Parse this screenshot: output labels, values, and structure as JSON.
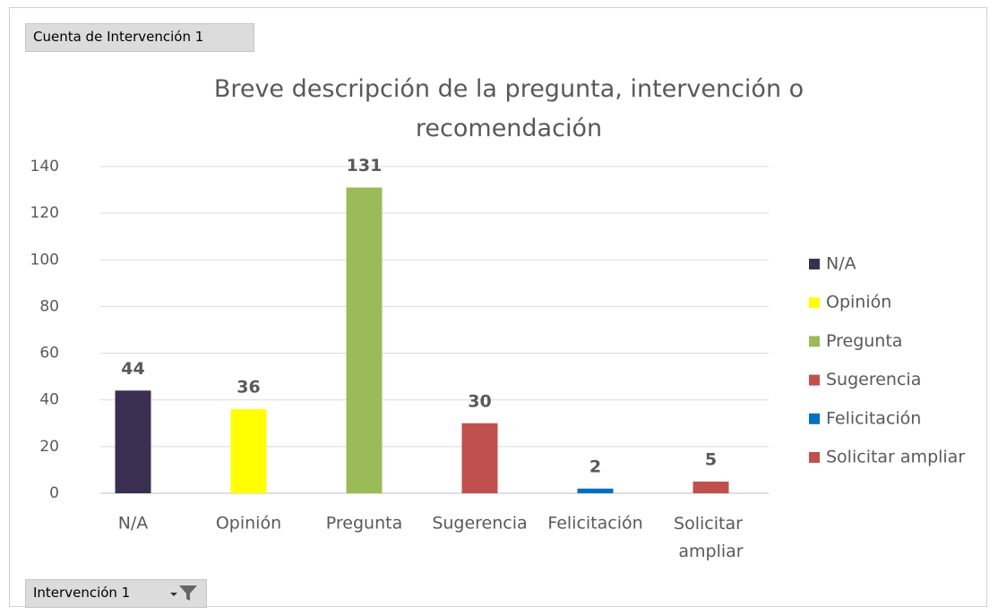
{
  "pivot_value_button": "Cuenta de Intervención 1",
  "pivot_axis_button": "Intervención 1",
  "chart_data": {
    "type": "bar",
    "title": "Breve descripción de la pregunta, intervención o recomendación",
    "categories": [
      "N/A",
      "Opinión",
      "Pregunta",
      "Sugerencia",
      "Felicitación",
      "Solicitar ampliar"
    ],
    "values": [
      44,
      36,
      131,
      30,
      2,
      5
    ],
    "colors": [
      "#3a2f50",
      "#ffff00",
      "#9bbb59",
      "#c0504d",
      "#0070c0",
      "#c0504d"
    ],
    "ylim": [
      0,
      140
    ],
    "yticks": [
      0,
      20,
      40,
      60,
      80,
      100,
      120,
      140
    ],
    "grid": true,
    "legend": "right"
  }
}
